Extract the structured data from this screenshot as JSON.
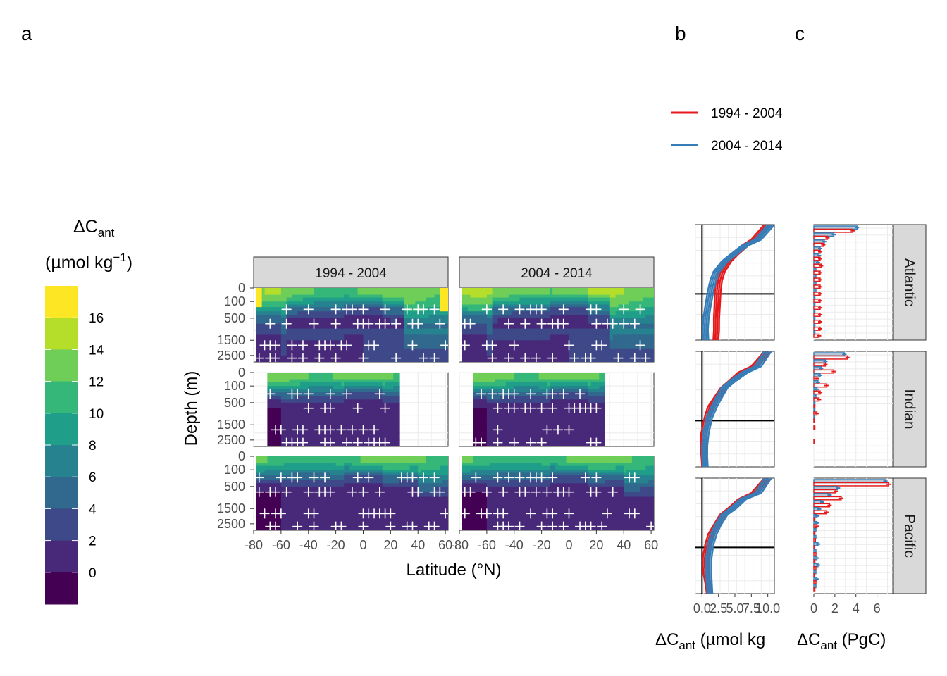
{
  "panel_labels": {
    "a": "a",
    "b": "b",
    "c": "c"
  },
  "colorbar": {
    "title_main": "ΔC",
    "title_sub": "ant",
    "title_unit_open": "(µmol kg",
    "title_unit_sup": "−1",
    "title_unit_close": ")",
    "ticks": [
      "16",
      "14",
      "12",
      "10",
      "8",
      "6",
      "4",
      "2",
      "0"
    ],
    "colors": [
      "#FDE725",
      "#B5DE2B",
      "#6ECE58",
      "#35B779",
      "#1F9E89",
      "#26828E",
      "#31688E",
      "#3E4989",
      "#482878",
      "#440154"
    ]
  },
  "line_legend": {
    "items": [
      {
        "label": "1994 - 2004",
        "color": "#E41A1C"
      },
      {
        "label": "2004 - 2014",
        "color": "#377EB8"
      }
    ]
  },
  "strips": {
    "columns": [
      "1994 - 2004",
      "2004 - 2014"
    ],
    "basins": [
      "Atlantic",
      "Indian",
      "Pacific"
    ]
  },
  "axes": {
    "a_y_title": "Depth (m)",
    "a_x_title": "Latitude (°N)",
    "a_y_ticks": [
      "0",
      "100",
      "500",
      "1500",
      "2500"
    ],
    "a_x_ticks": [
      "-80",
      "-60",
      "-40",
      "-20",
      "0",
      "20",
      "40",
      "60"
    ],
    "b_x_ticks": [
      "0.0",
      "2.5",
      "5.0",
      "7.5",
      "10.0"
    ],
    "b_x_title_main": "ΔC",
    "b_x_title_sub": "ant",
    "b_x_title_rest": " (µmol kg",
    "c_x_ticks": [
      "0",
      "2",
      "4",
      "6"
    ],
    "c_x_title_main": "ΔC",
    "c_x_title_sub": "ant",
    "c_x_title_rest": " (PgC)"
  },
  "chart_data": [
    {
      "type": "heatmap",
      "panel": "a",
      "xlabel": "Latitude (°N)",
      "ylabel": "Depth (m)",
      "xlim": [
        -80,
        62
      ],
      "ylim_depth": [
        0,
        3000
      ],
      "y_scale": "sqrt",
      "facets": {
        "columns": [
          "1994 - 2004",
          "2004 - 2014"
        ],
        "rows": [
          "Atlantic",
          "Indian",
          "Pacific"
        ]
      },
      "fill_label": "ΔCant (µmol kg−1)",
      "fill_breaks": [
        0,
        2,
        4,
        6,
        8,
        10,
        12,
        14,
        16
      ],
      "description_levels_surface": [
        12,
        14
      ],
      "lat_extent": {
        "Atlantic": [
          -78,
          62
        ],
        "Indian": [
          -70,
          25
        ],
        "Pacific": [
          -78,
          62
        ]
      }
    },
    {
      "type": "line",
      "panel": "b",
      "xlabel": "ΔCant (µmol kg",
      "xlim": [
        -1,
        11
      ],
      "ylim_depth": [
        0,
        3000
      ],
      "series": [
        {
          "name": "1994 - 2004",
          "color": "#E41A1C",
          "profiles": {
            "Atlantic": {
              "depth": [
                0,
                50,
                100,
                200,
                300,
                500,
                700,
                1000,
                1500,
                2000,
                2500,
                3000
              ],
              "value": [
                10,
                8,
                6.5,
                5,
                4,
                3,
                2.6,
                2.4,
                2.3,
                2.2,
                2.2,
                2.1
              ]
            },
            "Indian": {
              "depth": [
                0,
                50,
                100,
                200,
                300,
                500,
                700,
                1000,
                1500,
                2000,
                2500,
                3000
              ],
              "value": [
                10,
                8,
                6,
                4.5,
                3.3,
                2.2,
                1.3,
                0.8,
                0.3,
                0.2,
                0.3,
                0.4
              ]
            },
            "Pacific": {
              "depth": [
                0,
                50,
                100,
                200,
                300,
                500,
                700,
                1000,
                1500,
                2000,
                2500,
                3000
              ],
              "value": [
                10,
                8,
                6,
                4.5,
                3.2,
                2.2,
                1.4,
                0.9,
                0.5,
                0.6,
                0.9,
                1.1
              ]
            }
          }
        },
        {
          "name": "2004 - 2014",
          "color": "#377EB8",
          "profiles": {
            "Atlantic": {
              "depth": [
                0,
                50,
                100,
                200,
                300,
                500,
                700,
                1000,
                1500,
                2000,
                2500,
                3000
              ],
              "value": [
                10.5,
                8.5,
                6.5,
                4.8,
                3.5,
                2.2,
                1.7,
                1.3,
                0.9,
                0.6,
                0.5,
                0.6
              ]
            },
            "Indian": {
              "depth": [
                0,
                50,
                100,
                200,
                300,
                500,
                700,
                1000,
                1500,
                2000,
                2500,
                3000
              ],
              "value": [
                10,
                8.5,
                6.5,
                4.6,
                3.4,
                2.5,
                1.8,
                1.1,
                0.6,
                0.4,
                0.4,
                0.5
              ]
            },
            "Pacific": {
              "depth": [
                0,
                50,
                100,
                200,
                300,
                500,
                700,
                1000,
                1500,
                2000,
                2500,
                3000
              ],
              "value": [
                10,
                8.5,
                6.2,
                4.8,
                3.4,
                2.4,
                1.8,
                1.3,
                1.0,
                1.0,
                1.1,
                1.2
              ]
            }
          }
        }
      ]
    },
    {
      "type": "bar",
      "panel": "c",
      "xlabel": "ΔCant (PgC)",
      "xlim": [
        0,
        7.5
      ],
      "depth_layers": 16,
      "series": [
        {
          "name": "1994 - 2004",
          "color": "#E41A1C",
          "values": {
            "Atlantic": [
              3.7,
              1.3,
              0.9,
              0.6,
              0.6,
              0.7,
              0.6,
              0.6,
              0.6,
              0.6,
              0.6,
              0.6,
              0.6,
              0.6,
              0.6,
              0.5
            ],
            "Indian": [
              3.2,
              1.1,
              1.9,
              0.3,
              1.2,
              0.6,
              0.5,
              0.1,
              0.3,
              0.05,
              0.1,
              0.0,
              0.05,
              0.0,
              0.0,
              0.0
            ],
            "Pacific": [
              7.1,
              2.1,
              2.6,
              1.5,
              1.2,
              0.1,
              0.3,
              0.1,
              0.15,
              0.05,
              0.2,
              0.1,
              0.2,
              0.05,
              0.2,
              0.1
            ]
          }
        },
        {
          "name": "2004 - 2014",
          "color": "#377EB8",
          "values": {
            "Atlantic": [
              4.1,
              1.9,
              1.0,
              0.6,
              0.5,
              0.4,
              0.2,
              0.2,
              0.2,
              0.2,
              0.1,
              0.1,
              0.1,
              0.1,
              0.1,
              0.1
            ],
            "Indian": [
              2.9,
              1.1,
              0.7,
              0.6,
              0.4,
              0.3,
              0.2,
              0.1,
              0.1,
              0.05,
              0.0,
              0.0,
              0.0,
              0.0,
              0.0,
              0.0
            ],
            "Pacific": [
              6.8,
              2.3,
              1.5,
              0.8,
              0.5,
              0.3,
              0.3,
              0.2,
              0.2,
              0.4,
              0.2,
              0.3,
              0.4,
              0.2,
              0.3,
              0.2
            ]
          }
        }
      ]
    }
  ]
}
